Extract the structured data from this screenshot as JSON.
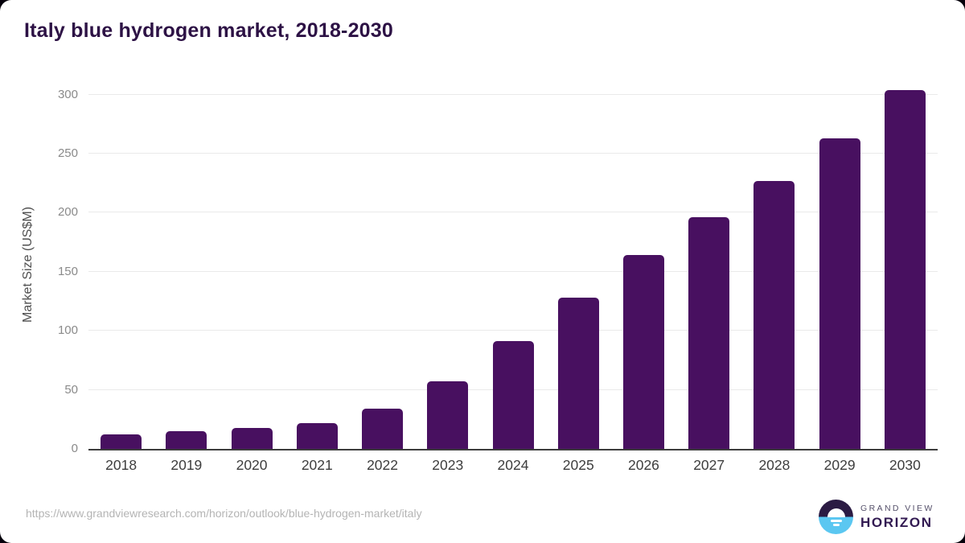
{
  "page": {
    "source_url": "https://www.grandviewresearch.com/horizon/outlook/blue-hydrogen-market/italy"
  },
  "chart_data": {
    "type": "bar",
    "title": "Italy blue hydrogen market, 2018-2030",
    "categories": [
      "2018",
      "2019",
      "2020",
      "2021",
      "2022",
      "2023",
      "2024",
      "2025",
      "2026",
      "2027",
      "2028",
      "2029",
      "2030"
    ],
    "values": [
      12,
      15,
      18,
      22,
      34,
      57,
      91,
      128,
      164,
      196,
      227,
      263,
      304
    ],
    "xlabel": "",
    "ylabel": "Market Size (US$M)",
    "ylim": [
      0,
      312
    ],
    "yticks": [
      0,
      50,
      100,
      150,
      200,
      250,
      300
    ],
    "grid": true,
    "legend": "none",
    "bar_color": "#481060",
    "axis_line_color": "#3c3c3c",
    "gridline_color": "#eaeaea",
    "title_color": "#2d1245"
  },
  "logo": {
    "line1": "GRAND VIEW",
    "line2": "HORIZON",
    "mark_top_color": "#2b1b43",
    "mark_bottom_color": "#5bc7f1"
  }
}
